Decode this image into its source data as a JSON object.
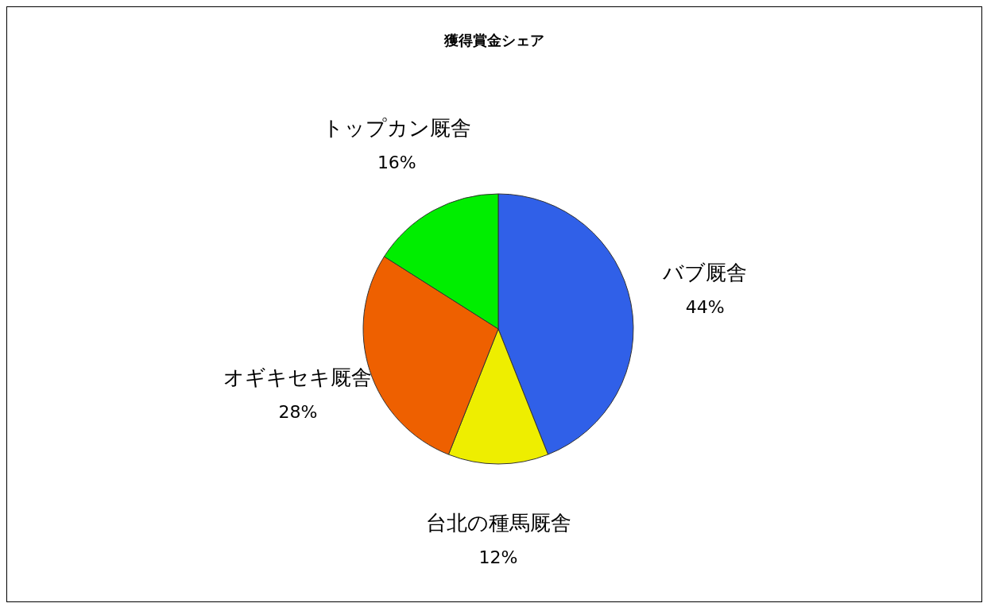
{
  "chart_data": {
    "type": "pie",
    "title": "獲得賞金シェア",
    "categories": [
      "バブ厩舎",
      "台北の種馬厩舎",
      "オギキセキ厩舎",
      "トップカン厩舎"
    ],
    "values": [
      44,
      12,
      28,
      16
    ],
    "colors": [
      "#3060e8",
      "#eeee00",
      "#ee6000",
      "#00ee00"
    ],
    "value_labels": [
      "44%",
      "12%",
      "28%",
      "16%"
    ],
    "legend": false
  }
}
